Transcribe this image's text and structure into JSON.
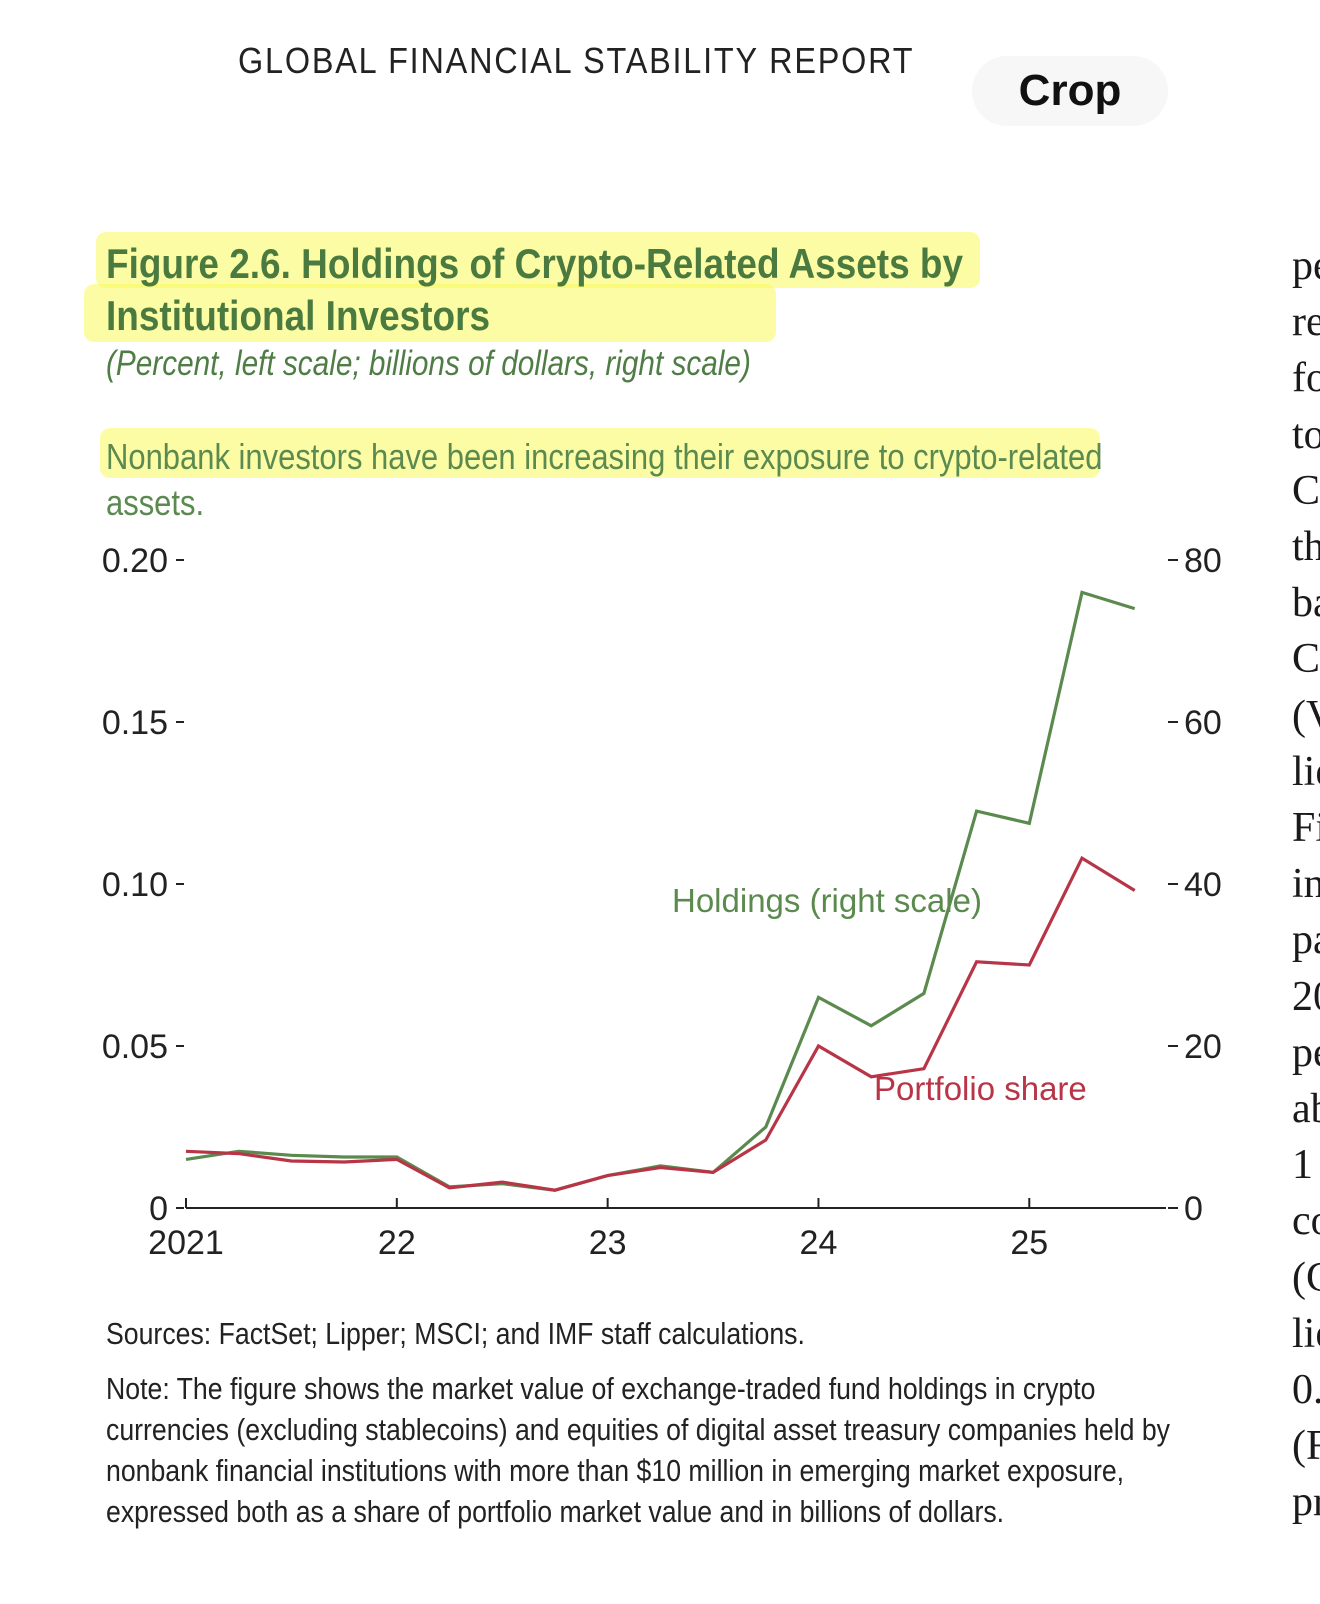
{
  "header": {
    "report_title": "GLOBAL FINANCIAL STABILITY REPORT",
    "crop_label": "Crop"
  },
  "figure": {
    "title_line1": "Figure 2.6. Holdings of Crypto-Related Assets by",
    "title_line2": "Institutional Investors",
    "subtitle": "(Percent, left scale; billions of dollars, right scale)",
    "lede": "Nonbank investors have been increasing their exposure to crypto-related assets.",
    "sources": "Sources: FactSet; Lipper; MSCI; and IMF staff calculations.",
    "note": "Note: The figure shows the market value of exchange-traded fund holdings in crypto currencies (excluding stablecoins) and equities of digital asset treasury companies held by nonbank financial institutions with more than $10 million in emerging market exposure, expressed both as a share of portfolio market value and in billions of dollars."
  },
  "colors": {
    "holdings": "#5b8a4e",
    "portfolio": "#b83548",
    "title": "#4a7a40",
    "highlight": "#fafa5a"
  },
  "chart_data": {
    "type": "line",
    "title": "Holdings of Crypto-Related Assets by Institutional Investors",
    "xlabel": "",
    "left_ylabel": "Percent",
    "right_ylabel": "Billions of dollars",
    "x": [
      2021.0,
      2021.25,
      2021.5,
      2021.75,
      2022.0,
      2022.25,
      2022.5,
      2022.75,
      2023.0,
      2023.25,
      2023.5,
      2023.75,
      2024.0,
      2024.25,
      2024.5,
      2024.75,
      2025.0,
      2025.25,
      2025.5
    ],
    "xlim": [
      2021.0,
      2025.62
    ],
    "x_ticks": [
      2021,
      2022,
      2023,
      2024,
      2025
    ],
    "x_tick_labels": [
      "2021",
      "22",
      "23",
      "24",
      "25"
    ],
    "left_ylim": [
      0,
      0.2
    ],
    "left_ticks": [
      0,
      0.05,
      0.1,
      0.15,
      0.2
    ],
    "left_tick_labels": [
      "0",
      "0.05",
      "0.10",
      "0.15",
      "0.20"
    ],
    "right_ylim": [
      0,
      80
    ],
    "right_ticks": [
      0,
      20,
      40,
      60,
      80
    ],
    "right_tick_labels": [
      "0",
      "20",
      "40",
      "60",
      "80"
    ],
    "series": [
      {
        "name": "Holdings (right scale)",
        "axis": "right",
        "values": [
          6.0,
          7.0,
          6.5,
          6.3,
          6.3,
          2.6,
          3.0,
          2.2,
          4.0,
          5.2,
          4.4,
          10.0,
          26.0,
          22.5,
          26.5,
          49.0,
          47.5,
          76.0,
          74.0
        ]
      },
      {
        "name": "Portfolio share",
        "axis": "left",
        "values": [
          0.0175,
          0.0168,
          0.0145,
          0.0142,
          0.015,
          0.0062,
          0.008,
          0.0055,
          0.01,
          0.0125,
          0.011,
          0.021,
          0.05,
          0.0405,
          0.043,
          0.076,
          0.075,
          0.108,
          0.098
        ]
      }
    ],
    "annotations": [
      {
        "text": "Holdings (right scale)",
        "series": "Holdings (right scale)"
      },
      {
        "text": "Portfolio share",
        "series": "Portfolio share"
      }
    ]
  },
  "side_column": [
    "pe",
    "re",
    "fo",
    "to",
    "C",
    "th",
    "ba",
    "C",
    "(V",
    "lie",
    "Fi",
    "in",
    "pa",
    "20",
    "pe",
    "ab",
    "1",
    "co",
    "(C",
    "lie",
    "0.",
    "(F",
    "pr"
  ]
}
